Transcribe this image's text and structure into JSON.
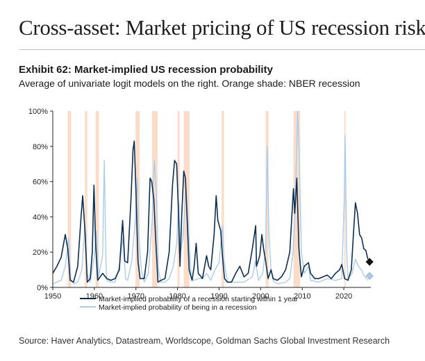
{
  "slide": {
    "title": "Cross-asset: Market pricing of US recession risk"
  },
  "exhibit": {
    "title": "Exhibit 62: Market-implied US recession probability",
    "subtitle": "Average of univariate logit models on the right. Orange shade: NBER recession"
  },
  "source": "Source: Haver Analytics, Datastream, Worldscope, Goldman Sachs Global Investment Research",
  "colors": {
    "dark_series": "#0b2e53",
    "light_series": "#a8cdec",
    "recession_shade": "#fbdcc8",
    "axis": "#222222"
  },
  "chart_data": {
    "type": "line",
    "title": "Market-implied US recession probability",
    "xlabel": "",
    "ylabel": "",
    "xlim": [
      1950,
      2026.5
    ],
    "ylim": [
      0,
      100
    ],
    "x_ticks": [
      1950,
      1960,
      1970,
      1980,
      1990,
      2000,
      2010,
      2020
    ],
    "y_ticks": [
      0,
      20,
      40,
      60,
      80,
      100
    ],
    "y_tick_labels": [
      "0%",
      "20%",
      "40%",
      "60%",
      "80%",
      "100%"
    ],
    "grid": false,
    "legend_position": "bottom",
    "recessions": [
      [
        1953.6,
        1954.4
      ],
      [
        1957.7,
        1958.3
      ],
      [
        1960.3,
        1961.1
      ],
      [
        1969.9,
        1970.9
      ],
      [
        1973.9,
        1975.2
      ],
      [
        1980.0,
        1980.5
      ],
      [
        1981.5,
        1982.9
      ],
      [
        1990.6,
        1991.2
      ],
      [
        2001.2,
        2001.9
      ],
      [
        2007.9,
        2009.5
      ],
      [
        2020.1,
        2020.4
      ]
    ],
    "series": [
      {
        "name": "Market-implied probability of a recession starting within 1 year",
        "color": "#0b2e53",
        "points": [
          [
            1950,
            8
          ],
          [
            1951,
            12
          ],
          [
            1952,
            17
          ],
          [
            1953,
            30
          ],
          [
            1953.6,
            22
          ],
          [
            1954.2,
            4
          ],
          [
            1955,
            3
          ],
          [
            1956,
            12
          ],
          [
            1956.8,
            40
          ],
          [
            1957.2,
            52
          ],
          [
            1957.8,
            30
          ],
          [
            1958.3,
            3
          ],
          [
            1959,
            5
          ],
          [
            1959.5,
            20
          ],
          [
            1959.9,
            58
          ],
          [
            1960.3,
            25
          ],
          [
            1960.8,
            4
          ],
          [
            1962,
            8
          ],
          [
            1963,
            5
          ],
          [
            1964,
            4
          ],
          [
            1965,
            5
          ],
          [
            1966,
            10
          ],
          [
            1966.8,
            38
          ],
          [
            1967.3,
            15
          ],
          [
            1968,
            14
          ],
          [
            1968.8,
            50
          ],
          [
            1969.3,
            78
          ],
          [
            1969.6,
            83
          ],
          [
            1970,
            55
          ],
          [
            1970.5,
            15
          ],
          [
            1971,
            5
          ],
          [
            1972,
            5
          ],
          [
            1972.8,
            20
          ],
          [
            1973.4,
            62
          ],
          [
            1973.8,
            60
          ],
          [
            1974.3,
            50
          ],
          [
            1974.8,
            25
          ],
          [
            1975.3,
            3
          ],
          [
            1976,
            4
          ],
          [
            1977,
            5
          ],
          [
            1978,
            20
          ],
          [
            1978.8,
            58
          ],
          [
            1979.3,
            72
          ],
          [
            1979.8,
            70
          ],
          [
            1980.2,
            45
          ],
          [
            1980.6,
            12
          ],
          [
            1981,
            40
          ],
          [
            1981.5,
            66
          ],
          [
            1981.9,
            62
          ],
          [
            1982.3,
            40
          ],
          [
            1982.8,
            10
          ],
          [
            1983.5,
            4
          ],
          [
            1984,
            12
          ],
          [
            1984.5,
            25
          ],
          [
            1985,
            8
          ],
          [
            1986,
            5
          ],
          [
            1987,
            18
          ],
          [
            1987.5,
            12
          ],
          [
            1988,
            10
          ],
          [
            1988.8,
            30
          ],
          [
            1989.3,
            52
          ],
          [
            1989.7,
            38
          ],
          [
            1990.4,
            32
          ],
          [
            1990.8,
            18
          ],
          [
            1991.3,
            5
          ],
          [
            1992,
            3
          ],
          [
            1993,
            3
          ],
          [
            1994,
            8
          ],
          [
            1995,
            12
          ],
          [
            1996,
            6
          ],
          [
            1997,
            8
          ],
          [
            1998,
            22
          ],
          [
            1998.8,
            35
          ],
          [
            1999,
            12
          ],
          [
            1999.8,
            18
          ],
          [
            2000.3,
            30
          ],
          [
            2000.7,
            22
          ],
          [
            2001.2,
            15
          ],
          [
            2001.8,
            5
          ],
          [
            2002.5,
            10
          ],
          [
            2003,
            5
          ],
          [
            2004,
            4
          ],
          [
            2005,
            6
          ],
          [
            2006,
            10
          ],
          [
            2006.5,
            15
          ],
          [
            2007,
            20
          ],
          [
            2007.5,
            40
          ],
          [
            2007.9,
            56
          ],
          [
            2008.2,
            42
          ],
          [
            2008.7,
            62
          ],
          [
            2009.2,
            22
          ],
          [
            2009.8,
            6
          ],
          [
            2010.5,
            12
          ],
          [
            2011.5,
            14
          ],
          [
            2012,
            8
          ],
          [
            2013,
            5
          ],
          [
            2014,
            5
          ],
          [
            2015,
            6
          ],
          [
            2016,
            7
          ],
          [
            2017,
            5
          ],
          [
            2018,
            8
          ],
          [
            2019,
            10
          ],
          [
            2019.5,
            13
          ],
          [
            2020.2,
            5
          ],
          [
            2021,
            4
          ],
          [
            2021.8,
            10
          ],
          [
            2022.3,
            30
          ],
          [
            2022.8,
            48
          ],
          [
            2023.3,
            42
          ],
          [
            2023.8,
            30
          ],
          [
            2024.3,
            28
          ],
          [
            2024.8,
            22
          ],
          [
            2025.3,
            21
          ],
          [
            2025.8,
            16
          ]
        ]
      },
      {
        "name": "Market-implied probability of being in a recession",
        "color": "#a8cdec",
        "points": [
          [
            1950,
            2
          ],
          [
            1952,
            4
          ],
          [
            1953,
            12
          ],
          [
            1953.8,
            28
          ],
          [
            1954.3,
            5
          ],
          [
            1955,
            2
          ],
          [
            1956,
            3
          ],
          [
            1957,
            10
          ],
          [
            1957.7,
            35
          ],
          [
            1958.2,
            8
          ],
          [
            1959,
            3
          ],
          [
            1960,
            18
          ],
          [
            1960.5,
            32
          ],
          [
            1961,
            6
          ],
          [
            1962,
            18
          ],
          [
            1962.4,
            72
          ],
          [
            1962.8,
            15
          ],
          [
            1963,
            4
          ],
          [
            1964,
            3
          ],
          [
            1965,
            3
          ],
          [
            1966,
            12
          ],
          [
            1966.9,
            28
          ],
          [
            1967.5,
            5
          ],
          [
            1968,
            4
          ],
          [
            1969,
            15
          ],
          [
            1969.9,
            40
          ],
          [
            1970.3,
            62
          ],
          [
            1970.7,
            30
          ],
          [
            1971.3,
            10
          ],
          [
            1972,
            3
          ],
          [
            1973,
            8
          ],
          [
            1973.9,
            38
          ],
          [
            1974.4,
            72
          ],
          [
            1974.9,
            55
          ],
          [
            1975.4,
            10
          ],
          [
            1976,
            3
          ],
          [
            1977,
            3
          ],
          [
            1978,
            5
          ],
          [
            1979,
            12
          ],
          [
            1979.8,
            25
          ],
          [
            1980.3,
            48
          ],
          [
            1980.7,
            20
          ],
          [
            1981.3,
            28
          ],
          [
            1982,
            55
          ],
          [
            1982.7,
            30
          ],
          [
            1983.3,
            5
          ],
          [
            1984,
            4
          ],
          [
            1985,
            5
          ],
          [
            1986,
            5
          ],
          [
            1987,
            8
          ],
          [
            1988,
            4
          ],
          [
            1989,
            10
          ],
          [
            1990,
            14
          ],
          [
            1990.8,
            35
          ],
          [
            1991.2,
            15
          ],
          [
            1992,
            3
          ],
          [
            1994,
            3
          ],
          [
            1996,
            3
          ],
          [
            1998,
            6
          ],
          [
            1998.7,
            15
          ],
          [
            1999.5,
            4
          ],
          [
            2000.5,
            8
          ],
          [
            2001.2,
            22
          ],
          [
            2001.6,
            80
          ],
          [
            2002,
            30
          ],
          [
            2002.5,
            10
          ],
          [
            2003,
            4
          ],
          [
            2004,
            2
          ],
          [
            2006,
            3
          ],
          [
            2007,
            5
          ],
          [
            2007.8,
            20
          ],
          [
            2008.3,
            45
          ],
          [
            2008.9,
            100
          ],
          [
            2009.3,
            75
          ],
          [
            2009.8,
            20
          ],
          [
            2010.5,
            8
          ],
          [
            2011.5,
            12
          ],
          [
            2012,
            4
          ],
          [
            2014,
            3
          ],
          [
            2016,
            5
          ],
          [
            2018,
            4
          ],
          [
            2019.5,
            5
          ],
          [
            2020.1,
            50
          ],
          [
            2020.3,
            86
          ],
          [
            2020.7,
            20
          ],
          [
            2021,
            5
          ],
          [
            2022,
            8
          ],
          [
            2022.8,
            16
          ],
          [
            2023.5,
            12
          ],
          [
            2024.2,
            10
          ],
          [
            2024.8,
            7
          ],
          [
            2025.4,
            5
          ],
          [
            2025.8,
            4
          ]
        ]
      }
    ],
    "markers": [
      {
        "name": "Average of univariate logit models (recession starting within 1 year)",
        "x": 2026.2,
        "y": 14.5,
        "color": "#111111"
      },
      {
        "name": "Average of univariate logit models (being in a recession)",
        "x": 2026.2,
        "y": 6.5,
        "color": "#a8cdec"
      }
    ]
  }
}
